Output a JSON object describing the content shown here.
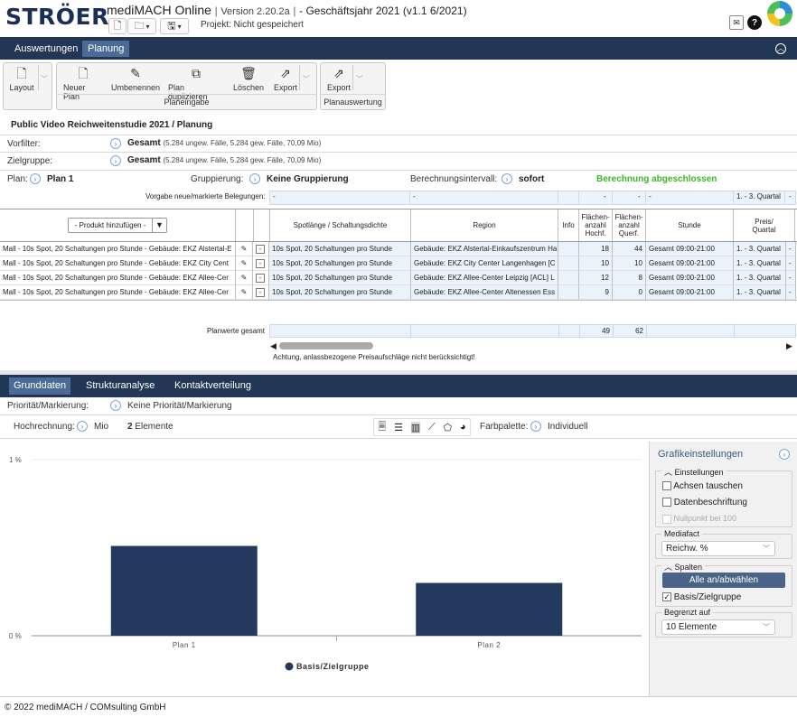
{
  "header": {
    "logo": "STRÖER",
    "app_name": "mediMACH Online",
    "version": "Version 2.20.2a",
    "fiscal_year": "- Geschäftsjahr 2021 (v1.1 6/2021)",
    "project_status": "Projekt: Nicht gespeichert",
    "separator": "|"
  },
  "main_nav": {
    "tabs": [
      "Auswertungen",
      "Planung"
    ]
  },
  "ribbon": {
    "layout": "Layout",
    "planeingabe_buttons": [
      "Neuer Plan",
      "Umbenennen",
      "Plan duplizieren",
      "Löschen",
      "Export"
    ],
    "planeingabe_label": "Planeingabe",
    "planauswertung_buttons": [
      "Export"
    ],
    "planauswertung_label": "Planauswertung"
  },
  "study_title": "Public Video Reichweitenstudie 2021 / Planung",
  "filters": {
    "vorfilter_label": "Vorfilter:",
    "vorfilter_value": "Gesamt",
    "vorfilter_detail": "(5.284 ungew. Fälle, 5.284 gew. Fälle, 70,09 Mio)",
    "zielgruppe_label": "Zielgruppe:",
    "zielgruppe_value": "Gesamt",
    "zielgruppe_detail": "(5.284 ungew. Fälle, 5.284 gew. Fälle, 70,09 Mio)"
  },
  "plan_row": {
    "plan_label": "Plan:",
    "plan_value": "Plan 1",
    "gruppierung_label": "Gruppierung:",
    "gruppierung_value": "Keine Gruppierung",
    "intervall_label": "Berechnungsintervall:",
    "intervall_value": "sofort",
    "status": "Berechnung abgeschlossen",
    "status_color": "#3cb526"
  },
  "vorgabe": {
    "label": "Vorgabe neue/markierte Belegungen:",
    "cells": [
      "-",
      "-",
      "-",
      "-",
      "-",
      "1. - 3. Quartal",
      "-"
    ]
  },
  "table": {
    "add_product": "- Produkt hinzufügen -",
    "columns": [
      "Spotlänge / Schaltungsdichte",
      "Region",
      "Info",
      "Flächen-anzahl Hochf.",
      "Flächen-anzahl Querf.",
      "Stunde",
      "Preis/ Quartal"
    ],
    "rows": [
      {
        "product": "Mall - 10s Spot, 20 Schaltungen pro Stunde - Gebäude: EKZ Alstertal-E",
        "spot": "10s Spot, 20 Schaltungen pro Stunde",
        "region": "Gebäude: EKZ Alstertal-Einkaufszentrum Ha",
        "hoch": "18",
        "quer": "44",
        "stunde": "Gesamt 09:00-21:00",
        "quartal": "1. - 3. Quartal",
        "last": "-"
      },
      {
        "product": "Mall - 10s Spot, 20 Schaltungen pro Stunde - Gebäude: EKZ City Cent",
        "spot": "10s Spot, 20 Schaltungen pro Stunde",
        "region": "Gebäude: EKZ City Center Langenhagen [C",
        "hoch": "10",
        "quer": "10",
        "stunde": "Gesamt 09:00-21:00",
        "quartal": "1. - 3. Quartal",
        "last": "-"
      },
      {
        "product": "Mall - 10s Spot, 20 Schaltungen pro Stunde - Gebäude: EKZ Allee-Cer",
        "spot": "10s Spot, 20 Schaltungen pro Stunde",
        "region": "Gebäude: EKZ Allee-Center Leipzig [ACL] L",
        "hoch": "12",
        "quer": "8",
        "stunde": "Gesamt 09:00-21:00",
        "quartal": "1. - 3. Quartal",
        "last": "-"
      },
      {
        "product": "Mall - 10s Spot, 20 Schaltungen pro Stunde - Gebäude: EKZ Allee-Cer",
        "spot": "10s Spot, 20 Schaltungen pro Stunde",
        "region": "Gebäude: EKZ Allee-Center Altenessen Ess",
        "hoch": "9",
        "quer": "0",
        "stunde": "Gesamt 09:00-21:00",
        "quartal": "1. - 3. Quartal",
        "last": "-"
      }
    ],
    "row_minus": "-",
    "totals_label": "Planwerte gesamt",
    "total_hoch": "49",
    "total_quer": "62",
    "warning": "Achtung, anlassbezogene Preisaufschläge nicht berücksichtigt!"
  },
  "bottom_nav": {
    "tabs": [
      "Grunddaten",
      "Strukturanalyse",
      "Kontaktverteilung"
    ]
  },
  "analysis": {
    "prioritaet_label": "Priorität/Markierung:",
    "prioritaet_value": "Keine Priorität/Markierung",
    "hochrechnung_label": "Hochrechnung:",
    "hochrechnung_value": "Mio",
    "elemente_count": "2",
    "elemente_label": "Elemente",
    "farbpalette_label": "Farbpalette:",
    "farbpalette_value": "Individuell"
  },
  "chart_data": {
    "type": "bar",
    "categories": [
      "Plan 1",
      "Plan 2"
    ],
    "series": [
      {
        "name": "Basis/Zielgruppe",
        "values": [
          0.51,
          0.3
        ],
        "color": "#233a5e"
      }
    ],
    "ylim": [
      0,
      1
    ],
    "yticks": [
      "0 %",
      "1 %"
    ],
    "legend_position": "bottom"
  },
  "grafik": {
    "title": "Grafikeinstellungen",
    "einstellungen_legend": "Einstellungen",
    "achsen": "Achsen tauschen",
    "daten": "Datenbeschriftung",
    "nullpunkt": "Nullpunkt bei 100",
    "mediafact_legend": "Mediafact",
    "mediafact_value": "Reichw. %",
    "spalten_legend": "Spalten",
    "alle_button": "Alle an/abwählen",
    "basis_check": "Basis/Zielgruppe",
    "begrenzt_legend": "Begrenzt auf",
    "begrenzt_value": "10 Elemente"
  },
  "footer": "© 2022 mediMACH / COMsulting GmbH"
}
